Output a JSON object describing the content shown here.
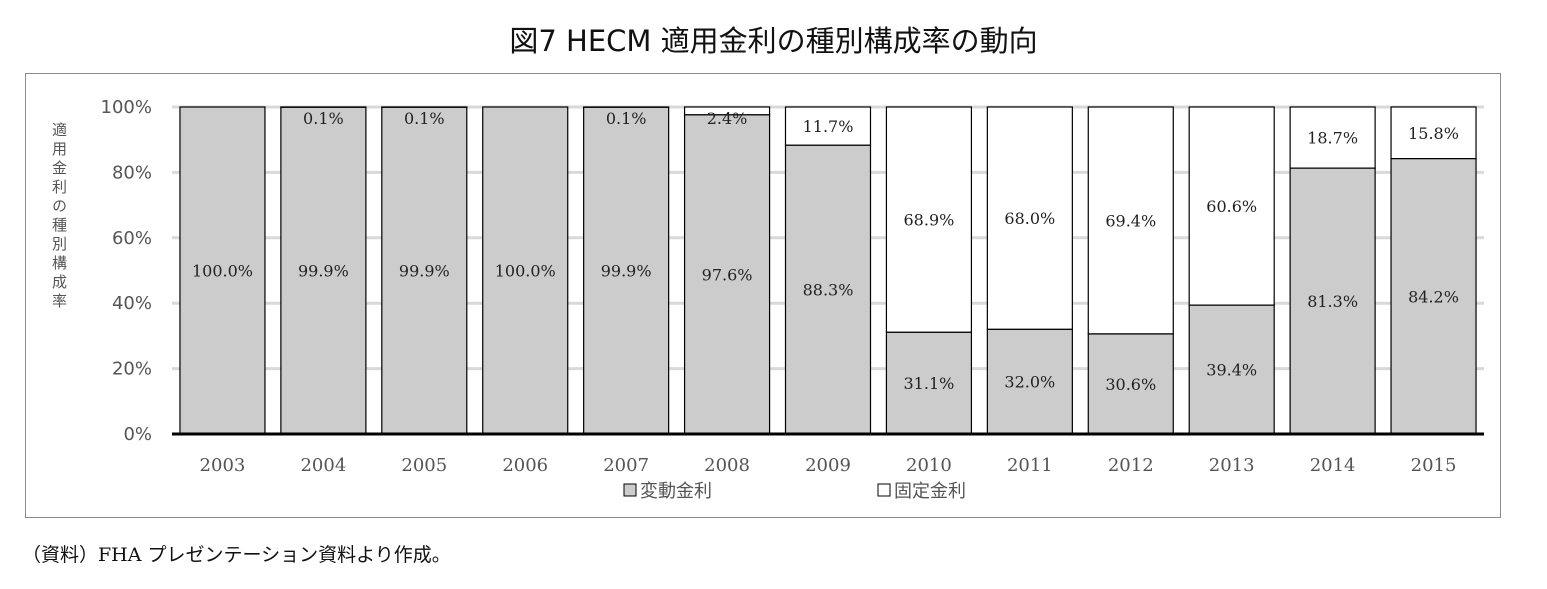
{
  "chart_data": {
    "type": "bar",
    "stacked": true,
    "title": "図7 HECM 適用金利の種別構成率の動向",
    "ylabel": "適用金利の種別構成率",
    "xlabel": "",
    "categories": [
      "2003",
      "2004",
      "2005",
      "2006",
      "2007",
      "2008",
      "2009",
      "2010",
      "2011",
      "2012",
      "2013",
      "2014",
      "2015"
    ],
    "ylim": [
      0,
      100
    ],
    "yticks": [
      "0%",
      "20%",
      "40%",
      "60%",
      "80%",
      "100%"
    ],
    "grid": true,
    "legend_position": "bottom",
    "series": [
      {
        "name": "変動金利",
        "color": "#cccccc",
        "values": [
          100.0,
          99.9,
          99.9,
          100.0,
          99.9,
          97.6,
          88.3,
          31.1,
          32.0,
          30.6,
          39.4,
          81.3,
          84.2
        ],
        "labels": [
          "100.0%",
          "99.9%",
          "99.9%",
          "100.0%",
          "99.9%",
          "97.6%",
          "88.3%",
          "31.1%",
          "32.0%",
          "30.6%",
          "39.4%",
          "81.3%",
          "84.2%"
        ]
      },
      {
        "name": "固定金利",
        "color": "#ffffff",
        "values": [
          0,
          0.1,
          0.1,
          0,
          0.1,
          2.4,
          11.7,
          68.9,
          68.0,
          69.4,
          60.6,
          18.7,
          15.8
        ],
        "labels": [
          "",
          "0.1%",
          "0.1%",
          "",
          "0.1%",
          "2.4%",
          "11.7%",
          "68.9%",
          "68.0%",
          "69.4%",
          "60.6%",
          "18.7%",
          "15.8%"
        ]
      }
    ]
  },
  "source_note": "（資料）FHA プレゼンテーション資料より作成。"
}
